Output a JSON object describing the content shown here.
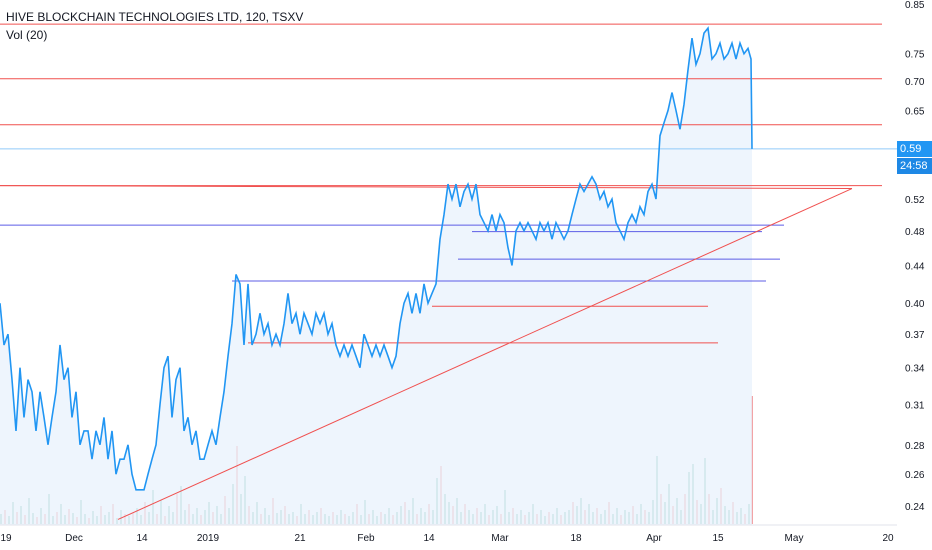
{
  "header": {
    "symbol": "HIVE BLOCKCHAIN TECHNOLOGIES LTD, 120, TSXV",
    "volume_indicator": "Vol (20)"
  },
  "price_tags": {
    "last_price": "0.59",
    "countdown": "24:58"
  },
  "colors": {
    "price_line": "#2196f3",
    "fill": "#eaf3fc",
    "support": "#f0504f",
    "resistance_blue": "#5c5ce6",
    "vol_up": "#8ec8bb",
    "vol_down": "#f2a3a6",
    "last_price_tag": "#2196f3",
    "countdown_tag": "#1e88e5"
  },
  "chart_data": {
    "type": "line",
    "title": "HIVE BLOCKCHAIN TECHNOLOGIES LTD, 120, TSXV",
    "y_ticks": [
      "0.85",
      "0.75",
      "0.70",
      "0.65",
      "0.52",
      "0.48",
      "0.44",
      "0.40",
      "0.37",
      "0.34",
      "0.31",
      "0.28",
      "0.26",
      "0.24"
    ],
    "x_ticks": [
      "19",
      "Dec",
      "14",
      "2019",
      "21",
      "Feb",
      "14",
      "Mar",
      "18",
      "Apr",
      "15",
      "May",
      "20"
    ],
    "ylim": [
      0.225,
      0.85
    ],
    "y_scale": "log",
    "price_path": [
      [
        0,
        0.4
      ],
      [
        4,
        0.36
      ],
      [
        8,
        0.37
      ],
      [
        12,
        0.33
      ],
      [
        16,
        0.29
      ],
      [
        20,
        0.34
      ],
      [
        24,
        0.3
      ],
      [
        28,
        0.33
      ],
      [
        32,
        0.32
      ],
      [
        36,
        0.29
      ],
      [
        40,
        0.32
      ],
      [
        44,
        0.3
      ],
      [
        48,
        0.28
      ],
      [
        52,
        0.3
      ],
      [
        56,
        0.32
      ],
      [
        60,
        0.36
      ],
      [
        64,
        0.33
      ],
      [
        68,
        0.34
      ],
      [
        72,
        0.3
      ],
      [
        76,
        0.32
      ],
      [
        80,
        0.28
      ],
      [
        84,
        0.29
      ],
      [
        88,
        0.29
      ],
      [
        92,
        0.27
      ],
      [
        96,
        0.29
      ],
      [
        100,
        0.28
      ],
      [
        104,
        0.3
      ],
      [
        108,
        0.27
      ],
      [
        112,
        0.29
      ],
      [
        116,
        0.26
      ],
      [
        120,
        0.27
      ],
      [
        124,
        0.27
      ],
      [
        128,
        0.28
      ],
      [
        132,
        0.26
      ],
      [
        136,
        0.25
      ],
      [
        140,
        0.25
      ],
      [
        144,
        0.25
      ],
      [
        148,
        0.26
      ],
      [
        152,
        0.27
      ],
      [
        156,
        0.28
      ],
      [
        160,
        0.31
      ],
      [
        164,
        0.34
      ],
      [
        168,
        0.35
      ],
      [
        172,
        0.3
      ],
      [
        176,
        0.33
      ],
      [
        180,
        0.34
      ],
      [
        184,
        0.29
      ],
      [
        188,
        0.3
      ],
      [
        192,
        0.28
      ],
      [
        196,
        0.29
      ],
      [
        200,
        0.27
      ],
      [
        204,
        0.27
      ],
      [
        208,
        0.28
      ],
      [
        212,
        0.29
      ],
      [
        216,
        0.28
      ],
      [
        220,
        0.3
      ],
      [
        224,
        0.32
      ],
      [
        228,
        0.35
      ],
      [
        232,
        0.38
      ],
      [
        236,
        0.43
      ],
      [
        240,
        0.42
      ],
      [
        244,
        0.36
      ],
      [
        248,
        0.42
      ],
      [
        252,
        0.36
      ],
      [
        256,
        0.37
      ],
      [
        260,
        0.39
      ],
      [
        264,
        0.37
      ],
      [
        268,
        0.38
      ],
      [
        272,
        0.36
      ],
      [
        276,
        0.37
      ],
      [
        280,
        0.36
      ],
      [
        284,
        0.38
      ],
      [
        288,
        0.41
      ],
      [
        292,
        0.38
      ],
      [
        296,
        0.39
      ],
      [
        300,
        0.37
      ],
      [
        304,
        0.39
      ],
      [
        308,
        0.38
      ],
      [
        312,
        0.37
      ],
      [
        316,
        0.39
      ],
      [
        320,
        0.38
      ],
      [
        324,
        0.39
      ],
      [
        328,
        0.37
      ],
      [
        332,
        0.38
      ],
      [
        336,
        0.36
      ],
      [
        340,
        0.35
      ],
      [
        344,
        0.36
      ],
      [
        348,
        0.35
      ],
      [
        352,
        0.36
      ],
      [
        356,
        0.35
      ],
      [
        360,
        0.34
      ],
      [
        364,
        0.37
      ],
      [
        368,
        0.36
      ],
      [
        372,
        0.35
      ],
      [
        376,
        0.36
      ],
      [
        380,
        0.35
      ],
      [
        384,
        0.36
      ],
      [
        388,
        0.35
      ],
      [
        392,
        0.34
      ],
      [
        396,
        0.35
      ],
      [
        400,
        0.38
      ],
      [
        404,
        0.4
      ],
      [
        408,
        0.41
      ],
      [
        412,
        0.39
      ],
      [
        416,
        0.41
      ],
      [
        420,
        0.39
      ],
      [
        424,
        0.42
      ],
      [
        428,
        0.4
      ],
      [
        432,
        0.41
      ],
      [
        436,
        0.42
      ],
      [
        440,
        0.47
      ],
      [
        444,
        0.5
      ],
      [
        448,
        0.54
      ],
      [
        452,
        0.52
      ],
      [
        456,
        0.54
      ],
      [
        460,
        0.51
      ],
      [
        464,
        0.53
      ],
      [
        468,
        0.54
      ],
      [
        472,
        0.52
      ],
      [
        476,
        0.54
      ],
      [
        480,
        0.5
      ],
      [
        484,
        0.49
      ],
      [
        488,
        0.48
      ],
      [
        492,
        0.5
      ],
      [
        496,
        0.48
      ],
      [
        500,
        0.5
      ],
      [
        504,
        0.49
      ],
      [
        508,
        0.46
      ],
      [
        512,
        0.44
      ],
      [
        516,
        0.48
      ],
      [
        520,
        0.49
      ],
      [
        524,
        0.48
      ],
      [
        528,
        0.49
      ],
      [
        532,
        0.48
      ],
      [
        536,
        0.47
      ],
      [
        540,
        0.49
      ],
      [
        544,
        0.48
      ],
      [
        548,
        0.49
      ],
      [
        552,
        0.47
      ],
      [
        556,
        0.49
      ],
      [
        560,
        0.48
      ],
      [
        564,
        0.47
      ],
      [
        568,
        0.48
      ],
      [
        572,
        0.5
      ],
      [
        576,
        0.52
      ],
      [
        580,
        0.54
      ],
      [
        584,
        0.53
      ],
      [
        588,
        0.54
      ],
      [
        592,
        0.55
      ],
      [
        596,
        0.54
      ],
      [
        600,
        0.52
      ],
      [
        604,
        0.53
      ],
      [
        608,
        0.51
      ],
      [
        612,
        0.52
      ],
      [
        616,
        0.49
      ],
      [
        620,
        0.48
      ],
      [
        624,
        0.47
      ],
      [
        628,
        0.49
      ],
      [
        632,
        0.5
      ],
      [
        636,
        0.49
      ],
      [
        640,
        0.51
      ],
      [
        644,
        0.5
      ],
      [
        648,
        0.53
      ],
      [
        652,
        0.54
      ],
      [
        656,
        0.52
      ],
      [
        660,
        0.61
      ],
      [
        664,
        0.63
      ],
      [
        668,
        0.65
      ],
      [
        672,
        0.68
      ],
      [
        676,
        0.65
      ],
      [
        680,
        0.62
      ],
      [
        684,
        0.66
      ],
      [
        688,
        0.72
      ],
      [
        692,
        0.78
      ],
      [
        696,
        0.73
      ],
      [
        700,
        0.75
      ],
      [
        704,
        0.79
      ],
      [
        708,
        0.8
      ],
      [
        712,
        0.74
      ],
      [
        716,
        0.75
      ],
      [
        720,
        0.77
      ],
      [
        724,
        0.74
      ],
      [
        728,
        0.75
      ],
      [
        732,
        0.77
      ],
      [
        736,
        0.74
      ],
      [
        740,
        0.77
      ],
      [
        744,
        0.75
      ],
      [
        748,
        0.76
      ],
      [
        751,
        0.74
      ],
      [
        752,
        0.59
      ]
    ],
    "horizontal_lines_red": [
      0.808,
      0.704,
      0.627,
      0.538
    ],
    "light_blue_line": 0.59,
    "horizontal_lines_blue": [
      0.487,
      0.478,
      0.447,
      0.423,
      0.417
    ],
    "horizontal_segments_red": [
      {
        "from": 432,
        "to": 708,
        "y": 0.397
      },
      {
        "from": 248,
        "to": 718,
        "y": 0.362
      }
    ],
    "horizontal_segments_blue": [
      {
        "from": 472,
        "to": 762,
        "y": 0.479
      },
      {
        "from": 458,
        "to": 780,
        "y": 0.447
      },
      {
        "from": 232,
        "to": 766,
        "y": 0.423
      }
    ],
    "trendline": {
      "from": [
        118,
        0.232
      ],
      "to": [
        852,
        0.534
      ],
      "back_to": [
        0,
        0.538
      ]
    },
    "volume_bars": [
      [
        0,
        10,
        1
      ],
      [
        4,
        14,
        0
      ],
      [
        8,
        8,
        1
      ],
      [
        12,
        22,
        1
      ],
      [
        16,
        12,
        0
      ],
      [
        20,
        18,
        1
      ],
      [
        24,
        9,
        0
      ],
      [
        28,
        26,
        1
      ],
      [
        32,
        11,
        1
      ],
      [
        36,
        7,
        0
      ],
      [
        40,
        16,
        1
      ],
      [
        44,
        10,
        0
      ],
      [
        48,
        30,
        1
      ],
      [
        52,
        8,
        1
      ],
      [
        56,
        12,
        0
      ],
      [
        60,
        20,
        1
      ],
      [
        64,
        9,
        1
      ],
      [
        68,
        15,
        0
      ],
      [
        72,
        11,
        1
      ],
      [
        76,
        7,
        0
      ],
      [
        80,
        24,
        1
      ],
      [
        84,
        10,
        1
      ],
      [
        88,
        6,
        0
      ],
      [
        92,
        13,
        1
      ],
      [
        96,
        8,
        1
      ],
      [
        100,
        18,
        0
      ],
      [
        104,
        9,
        1
      ],
      [
        108,
        12,
        1
      ],
      [
        112,
        20,
        0
      ],
      [
        116,
        6,
        1
      ],
      [
        120,
        14,
        1
      ],
      [
        124,
        10,
        0
      ],
      [
        128,
        8,
        1
      ],
      [
        132,
        11,
        0
      ],
      [
        136,
        16,
        1
      ],
      [
        140,
        9,
        1
      ],
      [
        144,
        22,
        0
      ],
      [
        148,
        12,
        1
      ],
      [
        152,
        34,
        1
      ],
      [
        156,
        10,
        0
      ],
      [
        160,
        24,
        1
      ],
      [
        164,
        8,
        0
      ],
      [
        168,
        18,
        1
      ],
      [
        172,
        12,
        1
      ],
      [
        176,
        30,
        0
      ],
      [
        180,
        38,
        1
      ],
      [
        184,
        14,
        1
      ],
      [
        188,
        20,
        0
      ],
      [
        192,
        10,
        1
      ],
      [
        196,
        16,
        1
      ],
      [
        200,
        9,
        0
      ],
      [
        204,
        14,
        1
      ],
      [
        208,
        22,
        1
      ],
      [
        212,
        12,
        0
      ],
      [
        216,
        18,
        1
      ],
      [
        220,
        10,
        1
      ],
      [
        224,
        28,
        0
      ],
      [
        228,
        16,
        1
      ],
      [
        232,
        40,
        1
      ],
      [
        236,
        78,
        0
      ],
      [
        240,
        30,
        1
      ],
      [
        244,
        48,
        1
      ],
      [
        248,
        18,
        0
      ],
      [
        252,
        12,
        1
      ],
      [
        256,
        22,
        1
      ],
      [
        260,
        10,
        0
      ],
      [
        264,
        16,
        1
      ],
      [
        268,
        9,
        1
      ],
      [
        272,
        26,
        0
      ],
      [
        276,
        11,
        1
      ],
      [
        280,
        14,
        1
      ],
      [
        284,
        18,
        0
      ],
      [
        288,
        10,
        1
      ],
      [
        292,
        12,
        1
      ],
      [
        296,
        8,
        0
      ],
      [
        300,
        20,
        1
      ],
      [
        304,
        10,
        1
      ],
      [
        308,
        14,
        0
      ],
      [
        312,
        9,
        1
      ],
      [
        316,
        12,
        1
      ],
      [
        320,
        16,
        0
      ],
      [
        324,
        10,
        1
      ],
      [
        328,
        8,
        1
      ],
      [
        332,
        12,
        0
      ],
      [
        336,
        9,
        1
      ],
      [
        340,
        14,
        1
      ],
      [
        344,
        10,
        0
      ],
      [
        348,
        8,
        1
      ],
      [
        352,
        12,
        1
      ],
      [
        356,
        20,
        0
      ],
      [
        360,
        9,
        1
      ],
      [
        364,
        24,
        1
      ],
      [
        368,
        10,
        0
      ],
      [
        372,
        14,
        1
      ],
      [
        376,
        8,
        1
      ],
      [
        380,
        12,
        0
      ],
      [
        384,
        10,
        1
      ],
      [
        388,
        16,
        1
      ],
      [
        392,
        9,
        0
      ],
      [
        396,
        12,
        1
      ],
      [
        400,
        18,
        1
      ],
      [
        404,
        22,
        0
      ],
      [
        408,
        14,
        1
      ],
      [
        412,
        26,
        1
      ],
      [
        416,
        10,
        0
      ],
      [
        420,
        16,
        1
      ],
      [
        424,
        12,
        1
      ],
      [
        428,
        20,
        0
      ],
      [
        432,
        14,
        1
      ],
      [
        436,
        46,
        1
      ],
      [
        440,
        58,
        0
      ],
      [
        444,
        30,
        1
      ],
      [
        448,
        22,
        1
      ],
      [
        452,
        18,
        0
      ],
      [
        456,
        26,
        1
      ],
      [
        460,
        12,
        1
      ],
      [
        464,
        20,
        0
      ],
      [
        468,
        14,
        1
      ],
      [
        472,
        10,
        1
      ],
      [
        476,
        16,
        0
      ],
      [
        480,
        12,
        1
      ],
      [
        484,
        20,
        1
      ],
      [
        488,
        9,
        0
      ],
      [
        492,
        14,
        1
      ],
      [
        496,
        18,
        1
      ],
      [
        500,
        10,
        0
      ],
      [
        504,
        34,
        1
      ],
      [
        508,
        12,
        1
      ],
      [
        512,
        16,
        0
      ],
      [
        516,
        10,
        1
      ],
      [
        520,
        14,
        1
      ],
      [
        524,
        9,
        0
      ],
      [
        528,
        12,
        1
      ],
      [
        532,
        20,
        1
      ],
      [
        536,
        10,
        0
      ],
      [
        540,
        14,
        1
      ],
      [
        544,
        8,
        1
      ],
      [
        548,
        12,
        0
      ],
      [
        552,
        10,
        1
      ],
      [
        556,
        16,
        1
      ],
      [
        560,
        9,
        0
      ],
      [
        564,
        12,
        1
      ],
      [
        568,
        14,
        1
      ],
      [
        572,
        22,
        0
      ],
      [
        576,
        18,
        1
      ],
      [
        580,
        26,
        1
      ],
      [
        584,
        14,
        0
      ],
      [
        588,
        20,
        1
      ],
      [
        592,
        12,
        1
      ],
      [
        596,
        16,
        0
      ],
      [
        600,
        10,
        1
      ],
      [
        604,
        14,
        1
      ],
      [
        608,
        22,
        0
      ],
      [
        612,
        10,
        1
      ],
      [
        616,
        16,
        1
      ],
      [
        620,
        9,
        0
      ],
      [
        624,
        14,
        1
      ],
      [
        628,
        12,
        1
      ],
      [
        632,
        18,
        0
      ],
      [
        636,
        10,
        1
      ],
      [
        640,
        20,
        1
      ],
      [
        644,
        14,
        0
      ],
      [
        648,
        12,
        1
      ],
      [
        652,
        24,
        1
      ],
      [
        656,
        68,
        1
      ],
      [
        660,
        30,
        0
      ],
      [
        664,
        22,
        1
      ],
      [
        668,
        40,
        1
      ],
      [
        672,
        18,
        0
      ],
      [
        676,
        26,
        1
      ],
      [
        680,
        14,
        1
      ],
      [
        684,
        30,
        0
      ],
      [
        688,
        52,
        1
      ],
      [
        692,
        60,
        1
      ],
      [
        696,
        24,
        0
      ],
      [
        700,
        20,
        1
      ],
      [
        704,
        66,
        1
      ],
      [
        708,
        30,
        0
      ],
      [
        712,
        14,
        1
      ],
      [
        716,
        26,
        1
      ],
      [
        720,
        36,
        0
      ],
      [
        724,
        18,
        1
      ],
      [
        728,
        14,
        1
      ],
      [
        732,
        22,
        0
      ],
      [
        736,
        12,
        1
      ],
      [
        740,
        16,
        1
      ],
      [
        744,
        10,
        0
      ],
      [
        748,
        20,
        1
      ],
      [
        751,
        128,
        0
      ]
    ]
  }
}
